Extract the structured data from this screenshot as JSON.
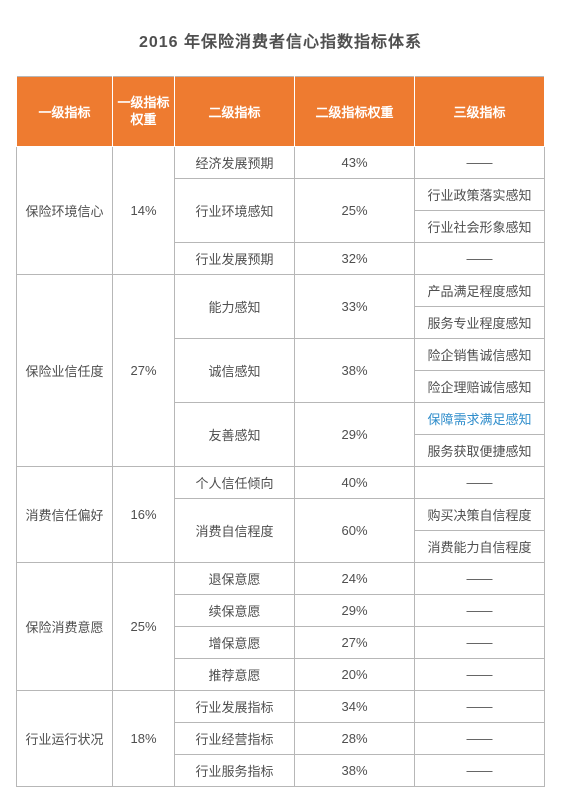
{
  "title": "2016 年保险消费者信心指数指标体系",
  "headers": {
    "c1": "一级指标",
    "c2": "一级指标权重",
    "c3": "二级指标",
    "c4": "二级指标权重",
    "c5": "三级指标"
  },
  "dash": "——",
  "colors": {
    "header_bg": "#ee7b30",
    "header_text": "#ffffff",
    "cell_text": "#4f4f4f",
    "link_text": "#2f8dcb",
    "border": "#b7b7b7",
    "background": "#ffffff"
  },
  "fonts": {
    "title_size_pt": 12,
    "cell_size_pt": 10,
    "header_size_pt": 10,
    "title_weight": "bold"
  },
  "groups": [
    {
      "l1": "保险环境信心",
      "l1_weight": "14%",
      "seconds": [
        {
          "l2": "经济发展预期",
          "w": "43%",
          "thirds": [
            "——"
          ]
        },
        {
          "l2": "行业环境感知",
          "w": "25%",
          "thirds": [
            "行业政策落实感知",
            "行业社会形象感知"
          ]
        },
        {
          "l2": "行业发展预期",
          "w": "32%",
          "thirds": [
            "——"
          ]
        }
      ]
    },
    {
      "l1": "保险业信任度",
      "l1_weight": "27%",
      "seconds": [
        {
          "l2": "能力感知",
          "w": "33%",
          "thirds": [
            "产品满足程度感知",
            "服务专业程度感知"
          ]
        },
        {
          "l2": "诚信感知",
          "w": "38%",
          "thirds": [
            "险企销售诚信感知",
            "险企理赔诚信感知"
          ]
        },
        {
          "l2": "友善感知",
          "w": "29%",
          "thirds": [
            "保障需求满足感知",
            "服务获取便捷感知"
          ],
          "link_index": 0
        }
      ]
    },
    {
      "l1": "消费信任偏好",
      "l1_weight": "16%",
      "seconds": [
        {
          "l2": "个人信任倾向",
          "w": "40%",
          "thirds": [
            "——"
          ]
        },
        {
          "l2": "消费自信程度",
          "w": "60%",
          "thirds": [
            "购买决策自信程度",
            "消费能力自信程度"
          ]
        }
      ]
    },
    {
      "l1": "保险消费意愿",
      "l1_weight": "25%",
      "seconds": [
        {
          "l2": "退保意愿",
          "w": "24%",
          "thirds": [
            "——"
          ]
        },
        {
          "l2": "续保意愿",
          "w": "29%",
          "thirds": [
            "——"
          ]
        },
        {
          "l2": "增保意愿",
          "w": "27%",
          "thirds": [
            "——"
          ]
        },
        {
          "l2": "推荐意愿",
          "w": "20%",
          "thirds": [
            "——"
          ]
        }
      ]
    },
    {
      "l1": "行业运行状况",
      "l1_weight": "18%",
      "seconds": [
        {
          "l2": "行业发展指标",
          "w": "34%",
          "thirds": [
            "——"
          ]
        },
        {
          "l2": "行业经营指标",
          "w": "28%",
          "thirds": [
            "——"
          ]
        },
        {
          "l2": "行业服务指标",
          "w": "38%",
          "thirds": [
            "——"
          ]
        }
      ]
    }
  ]
}
